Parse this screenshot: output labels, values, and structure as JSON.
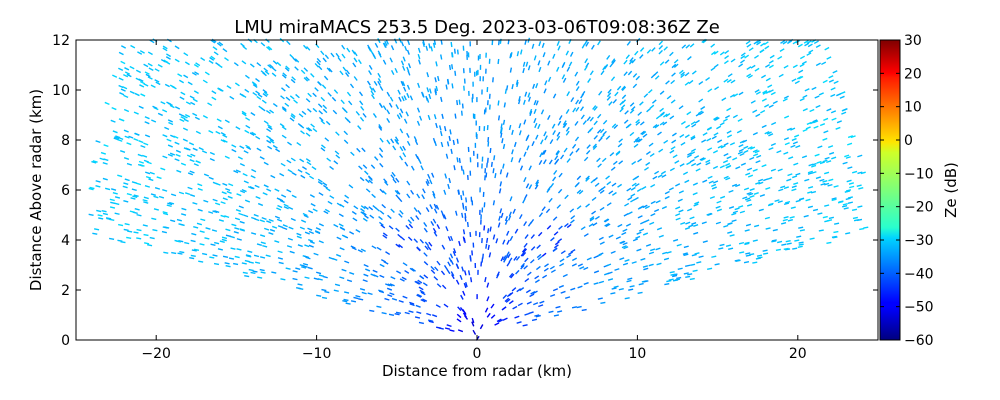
{
  "chart_data": {
    "type": "heatmap",
    "title": "LMU miraMACS 253.5 Deg. 2023-03-06T09:08:36Z  Ze",
    "xlabel": "Distance from radar (km)",
    "ylabel": "Distance Above radar  (km)",
    "xlim": [
      -25,
      25
    ],
    "ylim": [
      0,
      12
    ],
    "x_ticks": [
      -20,
      -10,
      0,
      10,
      20
    ],
    "x_tick_labels": [
      "−20",
      "−10",
      "0",
      "10",
      "20"
    ],
    "y_ticks": [
      0,
      2,
      4,
      6,
      8,
      10,
      12
    ],
    "y_tick_labels": [
      "0",
      "2",
      "4",
      "6",
      "8",
      "10",
      "12"
    ],
    "grid": false,
    "colorbar": {
      "label": "Ze (dB)",
      "vmin": -60,
      "vmax": 30,
      "ticks": [
        -60,
        -50,
        -40,
        -30,
        -20,
        -10,
        0,
        10,
        20,
        30
      ],
      "tick_labels": [
        "−60",
        "−50",
        "−40",
        "−30",
        "−20",
        "−10",
        "0",
        "10",
        "20",
        "30"
      ],
      "colormap": "jet"
    },
    "rhi_scan": {
      "azimuth_deg": 253.5,
      "elevation_range_deg": [
        10,
        170
      ],
      "max_range_km": 25,
      "features": [
        {
          "region": "near radar, 0-2 km height",
          "ze_db": -50
        },
        {
          "region": "layer at 3.5-4.5 km height, -5 to 5 km",
          "ze_db": -43
        },
        {
          "region": "mid ranges 5-15 km",
          "ze_db": -38
        },
        {
          "region": "far ranges beyond 15 km",
          "ze_db": -30
        }
      ]
    }
  }
}
